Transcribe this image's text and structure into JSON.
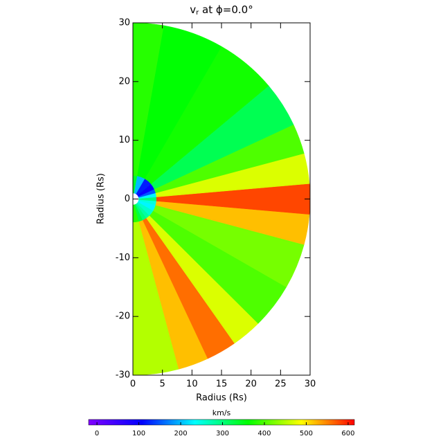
{
  "chart_data": {
    "type": "polar-heatmap",
    "title": {
      "main": "v",
      "sub": "r",
      "rest": " at ϕ=0.0°"
    },
    "x_label": "Radius (Rs)",
    "y_label": "Radius (Rs)",
    "xlim": [
      0,
      30
    ],
    "xticks": [
      0,
      5,
      10,
      15,
      20,
      25,
      30
    ],
    "ylim": [
      -30,
      30
    ],
    "yticks": [
      -30,
      -20,
      -10,
      0,
      10,
      20,
      30
    ],
    "r_edges": [
      1,
      4,
      30
    ],
    "theta_edges": [
      -90,
      -75,
      -65,
      -55,
      -45,
      -30,
      -15,
      -5,
      5,
      15,
      25,
      40,
      60,
      80,
      90
    ],
    "values": [
      [
        380,
        330,
        300,
        280,
        260,
        230,
        250,
        300,
        230,
        150,
        100,
        120,
        200,
        340
      ],
      [
        450,
        520,
        560,
        470,
        400,
        420,
        520,
        580,
        470,
        400,
        320,
        370,
        360,
        380
      ]
    ],
    "colorbar": {
      "label": "km/s",
      "clim": [
        -20,
        615
      ],
      "ticks": [
        0,
        100,
        200,
        300,
        400,
        500,
        600
      ]
    },
    "colormap": [
      "#8000ff",
      "#0000ff",
      "#00ffff",
      "#00ff00",
      "#ffff00",
      "#ff0000"
    ]
  }
}
